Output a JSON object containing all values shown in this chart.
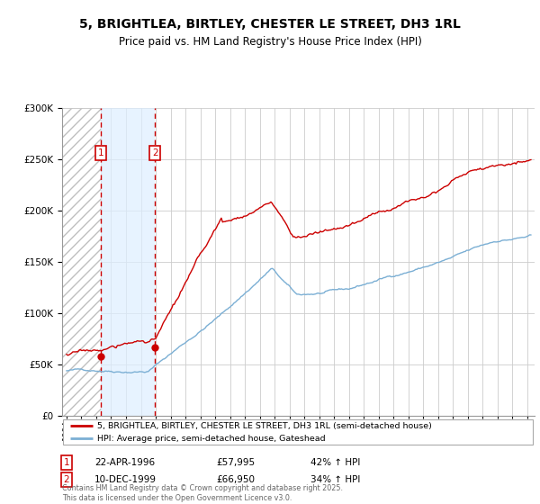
{
  "title_line1": "5, BRIGHTLEA, BIRTLEY, CHESTER LE STREET, DH3 1RL",
  "title_line2": "Price paid vs. HM Land Registry's House Price Index (HPI)",
  "red_label": "5, BRIGHTLEA, BIRTLEY, CHESTER LE STREET, DH3 1RL (semi-detached house)",
  "blue_label": "HPI: Average price, semi-detached house, Gateshead",
  "footnote": "Contains HM Land Registry data © Crown copyright and database right 2025.\nThis data is licensed under the Open Government Licence v3.0.",
  "purchase1_date": 1996.29,
  "purchase1_price": 57995,
  "purchase2_date": 1999.95,
  "purchase2_price": 66950,
  "ylim": [
    0,
    300000
  ],
  "xlim_start": 1993.7,
  "xlim_end": 2025.5,
  "background_color": "#ffffff",
  "plot_bg_color": "#ffffff",
  "grid_color": "#cccccc",
  "red_color": "#cc0000",
  "blue_color": "#7bafd4",
  "shaded_color": "#ddeeff",
  "vline_color": "#cc0000"
}
